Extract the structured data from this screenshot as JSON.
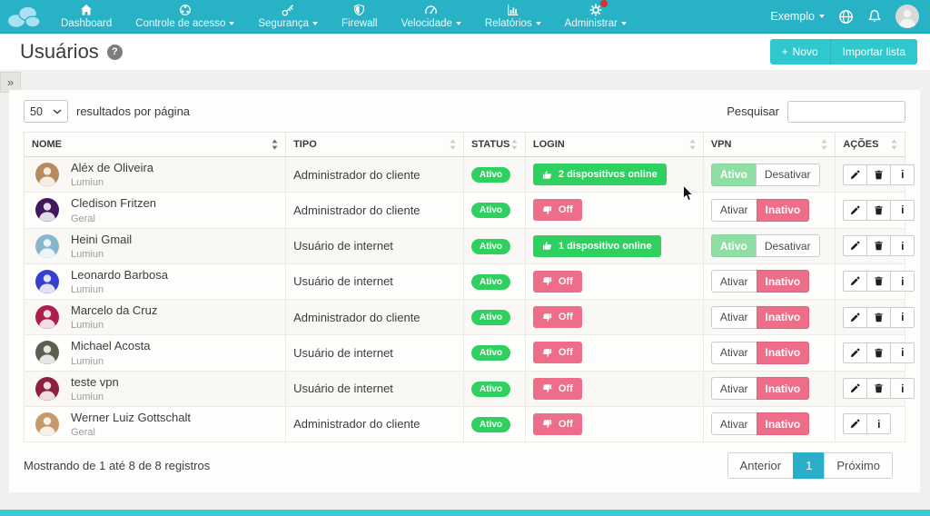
{
  "colors": {
    "navbar": "#28b2c6",
    "accent": "#2fc8cd",
    "green": "#2ed160",
    "light_green": "#8fdfa5",
    "pink": "#ee6d89",
    "active_page": "#2aaec9"
  },
  "navbar": {
    "items": [
      {
        "id": "dashboard",
        "label": "Dashboard",
        "icon": "home",
        "caret": false,
        "badge": false
      },
      {
        "id": "controle-de-acesso",
        "label": "Controle de acesso",
        "icon": "network-globe",
        "caret": true,
        "badge": false
      },
      {
        "id": "seguranca",
        "label": "Segurança",
        "icon": "key",
        "caret": true,
        "badge": false
      },
      {
        "id": "firewall",
        "label": "Firewall",
        "icon": "shield",
        "caret": false,
        "badge": false
      },
      {
        "id": "velocidade",
        "label": "Velocidade",
        "icon": "speedometer",
        "caret": true,
        "badge": false
      },
      {
        "id": "relatorios",
        "label": "Relatórios",
        "icon": "bar-chart",
        "caret": true,
        "badge": false
      },
      {
        "id": "administrar",
        "label": "Administrar",
        "icon": "gear",
        "caret": true,
        "badge": true
      }
    ],
    "account": {
      "label": "Exemplo"
    }
  },
  "page": {
    "title": "Usuários",
    "help_icon": "?",
    "sidebar_toggle": "»",
    "buttons": {
      "new_plus": "+",
      "new": "Novo",
      "import": "Importar lista"
    }
  },
  "toolbar": {
    "page_size_value": "50",
    "page_size_label": "resultados por página",
    "search_label": "Pesquisar",
    "search_value": ""
  },
  "table": {
    "columns": [
      {
        "key": "nome",
        "label": "NOME",
        "sort_dark": true
      },
      {
        "key": "tipo",
        "label": "TIPO",
        "sort_dark": false
      },
      {
        "key": "status",
        "label": "STATUS",
        "sort_dark": false
      },
      {
        "key": "login",
        "label": "LOGIN",
        "sort_dark": false
      },
      {
        "key": "vpn",
        "label": "VPN",
        "sort_dark": false
      },
      {
        "key": "acoes",
        "label": "AÇÕES",
        "sort_dark": false
      }
    ],
    "rows": [
      {
        "name": "Aléx de Oliveira",
        "group": "Lumiun",
        "type": "Administrador do cliente",
        "status": "Ativo",
        "login": {
          "online": true,
          "label": "2 dispositivos online"
        },
        "vpn": {
          "active": true,
          "on_label": "Ativo",
          "off_label": "Desativar"
        },
        "actions": [
          "edit",
          "delete",
          "info"
        ],
        "avatar_color": "#b98a5e"
      },
      {
        "name": "Cledison Fritzen",
        "group": "Geral",
        "type": "Administrador do cliente",
        "status": "Ativo",
        "login": {
          "online": false,
          "label": "Off"
        },
        "vpn": {
          "active": false,
          "on_label": "Ativar",
          "off_label": "Inativo"
        },
        "actions": [
          "edit",
          "delete",
          "info"
        ],
        "avatar_color": "#41175c"
      },
      {
        "name": "Heini Gmail",
        "group": "Lumiun",
        "type": "Usuário de internet",
        "status": "Ativo",
        "login": {
          "online": true,
          "label": "1 dispositivo online"
        },
        "vpn": {
          "active": true,
          "on_label": "Ativo",
          "off_label": "Desativar"
        },
        "actions": [
          "edit",
          "delete",
          "info"
        ],
        "avatar_color": "#86b7cf"
      },
      {
        "name": "Leonardo Barbosa",
        "group": "Lumiun",
        "type": "Usuário de internet",
        "status": "Ativo",
        "login": {
          "online": false,
          "label": "Off"
        },
        "vpn": {
          "active": false,
          "on_label": "Ativar",
          "off_label": "Inativo"
        },
        "actions": [
          "edit",
          "delete",
          "info"
        ],
        "avatar_color": "#3540cf"
      },
      {
        "name": "Marcelo da Cruz",
        "group": "Lumiun",
        "type": "Administrador do cliente",
        "status": "Ativo",
        "login": {
          "online": false,
          "label": "Off"
        },
        "vpn": {
          "active": false,
          "on_label": "Ativar",
          "off_label": "Inativo"
        },
        "actions": [
          "edit",
          "delete",
          "info"
        ],
        "avatar_color": "#ad1d4e"
      },
      {
        "name": "Michael Acosta",
        "group": "Lumiun",
        "type": "Usuário de internet",
        "status": "Ativo",
        "login": {
          "online": false,
          "label": "Off"
        },
        "vpn": {
          "active": false,
          "on_label": "Ativar",
          "off_label": "Inativo"
        },
        "actions": [
          "edit",
          "delete",
          "info"
        ],
        "avatar_color": "#59604f"
      },
      {
        "name": "teste vpn",
        "group": "Lumiun",
        "type": "Usuário de internet",
        "status": "Ativo",
        "login": {
          "online": false,
          "label": "Off"
        },
        "vpn": {
          "active": false,
          "on_label": "Ativar",
          "off_label": "Inativo"
        },
        "actions": [
          "edit",
          "delete",
          "info"
        ],
        "avatar_color": "#8f1f41"
      },
      {
        "name": "Werner Luiz Gottschalt",
        "group": "Geral",
        "type": "Administrador do cliente",
        "status": "Ativo",
        "login": {
          "online": false,
          "label": "Off"
        },
        "vpn": {
          "active": false,
          "on_label": "Ativar",
          "off_label": "Inativo"
        },
        "actions": [
          "edit",
          "info"
        ],
        "avatar_color": "#c6996b"
      }
    ]
  },
  "footer": {
    "summary": "Mostrando de 1 até 8 de 8 registros",
    "pagination": {
      "prev": "Anterior",
      "current": "1",
      "next": "Próximo"
    }
  }
}
